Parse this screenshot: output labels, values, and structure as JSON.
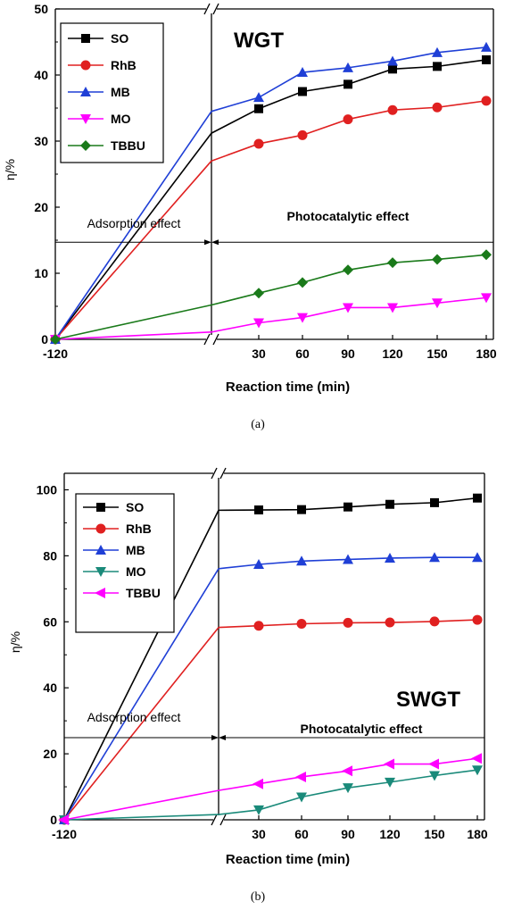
{
  "chart_data": [
    {
      "type": "line",
      "panel_label": "(a)",
      "inset_title": "WGT",
      "xlabel": "Reaction time (min)",
      "ylabel": "η/%",
      "ylim": [
        0,
        50
      ],
      "yticks": [
        "0",
        "10",
        "20",
        "30",
        "40",
        "50"
      ],
      "xticks": [
        "-120",
        "30",
        "60",
        "90",
        "120",
        "150",
        "180"
      ],
      "x": [
        30,
        60,
        90,
        120,
        150,
        180
      ],
      "annotations": {
        "left": "Adsorption effect",
        "right": "Photocatalytic effect"
      },
      "arrow_y": 14.7,
      "legend_position": "top-left",
      "series": [
        {
          "name": "SO",
          "color": "#000000",
          "marker": "square",
          "start": 0,
          "adsorbed": 31.2,
          "values": [
            34.9,
            37.5,
            38.6,
            40.9,
            41.3,
            42.3
          ]
        },
        {
          "name": "RhB",
          "color": "#e02020",
          "marker": "circle",
          "start": 0,
          "adsorbed": 27.0,
          "values": [
            29.6,
            30.9,
            33.3,
            34.7,
            35.1,
            36.1
          ]
        },
        {
          "name": "MB",
          "color": "#1f3fd6",
          "marker": "triangle-up",
          "start": 0,
          "adsorbed": 34.5,
          "values": [
            36.6,
            40.4,
            41.1,
            42.1,
            43.4,
            44.2
          ]
        },
        {
          "name": "MO",
          "color": "#ff00ff",
          "marker": "triangle-down",
          "start": 0,
          "adsorbed": 1.1,
          "values": [
            2.5,
            3.3,
            4.8,
            4.8,
            5.5,
            6.3
          ]
        },
        {
          "name": "TBBU",
          "color": "#1a7a1a",
          "marker": "diamond",
          "start": 0,
          "adsorbed": 5.2,
          "values": [
            7.0,
            8.6,
            10.5,
            11.6,
            12.1,
            12.8
          ]
        }
      ]
    },
    {
      "type": "line",
      "panel_label": "(b)",
      "inset_title": "SWGT",
      "xlabel": "Reaction time (min)",
      "ylabel": "η/%",
      "ylim": [
        0,
        105
      ],
      "yticks": [
        "0",
        "20",
        "40",
        "60",
        "80",
        "100"
      ],
      "xticks": [
        "-120",
        "30",
        "60",
        "90",
        "120",
        "150",
        "180"
      ],
      "x": [
        30,
        60,
        90,
        120,
        150,
        180
      ],
      "annotations": {
        "left": "Adsorption effect",
        "right": "Photocatalytic effect"
      },
      "arrow_y": 24.9,
      "legend_position": "top-left",
      "series": [
        {
          "name": "SO",
          "color": "#000000",
          "marker": "square",
          "start": 0,
          "adsorbed": 93.8,
          "values": [
            93.9,
            94.0,
            94.8,
            95.6,
            96.1,
            97.5
          ]
        },
        {
          "name": "RhB",
          "color": "#e02020",
          "marker": "circle",
          "start": 0,
          "adsorbed": 58.3,
          "values": [
            58.8,
            59.4,
            59.7,
            59.8,
            60.1,
            60.6
          ]
        },
        {
          "name": "MB",
          "color": "#1f3fd6",
          "marker": "triangle-up",
          "start": 0,
          "adsorbed": 76.1,
          "values": [
            77.4,
            78.4,
            78.9,
            79.3,
            79.5,
            79.5
          ]
        },
        {
          "name": "MO",
          "color": "#1a8a7a",
          "marker": "triangle-down",
          "start": 0,
          "adsorbed": 1.6,
          "values": [
            3.0,
            6.9,
            9.7,
            11.4,
            13.4,
            15.1
          ]
        },
        {
          "name": "TBBU",
          "color": "#ff00ff",
          "marker": "triangle-left",
          "start": 0,
          "adsorbed": 8.9,
          "values": [
            10.9,
            13.0,
            14.8,
            16.9,
            16.9,
            18.6
          ]
        }
      ]
    }
  ]
}
